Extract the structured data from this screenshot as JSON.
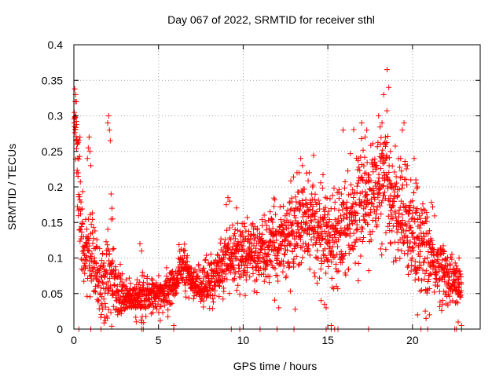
{
  "chart_data": {
    "type": "scatter",
    "title": "Day 067 of 2022, SRMTID for receiver sthl",
    "xlabel": "GPS time / hours",
    "ylabel": "SRMTID / TECUs",
    "xlim": [
      0,
      24
    ],
    "ylim": [
      0,
      0.4
    ],
    "xticks": [
      0,
      5,
      10,
      15,
      20
    ],
    "xtick_labels": [
      "0",
      "5",
      "10",
      "15",
      "20"
    ],
    "yticks": [
      0,
      0.05,
      0.1,
      0.15,
      0.2,
      0.25,
      0.3,
      0.35,
      0.4
    ],
    "ytick_labels": [
      "0",
      "0.05",
      "0.1",
      "0.15",
      "0.2",
      "0.25",
      "0.3",
      "0.35",
      "0.4"
    ],
    "grid": true,
    "marker": "plus",
    "color": "#ff0000",
    "trend": [
      {
        "x": 0.0,
        "y": 0.31,
        "s": 0.02
      },
      {
        "x": 0.3,
        "y": 0.2,
        "s": 0.06
      },
      {
        "x": 0.6,
        "y": 0.1,
        "s": 0.04
      },
      {
        "x": 1.0,
        "y": 0.12,
        "s": 0.05
      },
      {
        "x": 1.5,
        "y": 0.06,
        "s": 0.025
      },
      {
        "x": 2.0,
        "y": 0.08,
        "s": 0.05
      },
      {
        "x": 2.5,
        "y": 0.06,
        "s": 0.025
      },
      {
        "x": 3.0,
        "y": 0.045,
        "s": 0.015
      },
      {
        "x": 4.0,
        "y": 0.045,
        "s": 0.018
      },
      {
        "x": 5.0,
        "y": 0.045,
        "s": 0.015
      },
      {
        "x": 6.0,
        "y": 0.065,
        "s": 0.02
      },
      {
        "x": 6.3,
        "y": 0.095,
        "s": 0.02
      },
      {
        "x": 7.0,
        "y": 0.06,
        "s": 0.02
      },
      {
        "x": 8.0,
        "y": 0.065,
        "s": 0.025
      },
      {
        "x": 9.0,
        "y": 0.1,
        "s": 0.03
      },
      {
        "x": 10.0,
        "y": 0.11,
        "s": 0.03
      },
      {
        "x": 11.0,
        "y": 0.105,
        "s": 0.03
      },
      {
        "x": 12.0,
        "y": 0.12,
        "s": 0.035
      },
      {
        "x": 13.0,
        "y": 0.14,
        "s": 0.04
      },
      {
        "x": 14.0,
        "y": 0.15,
        "s": 0.04
      },
      {
        "x": 15.0,
        "y": 0.13,
        "s": 0.04
      },
      {
        "x": 16.0,
        "y": 0.15,
        "s": 0.045
      },
      {
        "x": 17.0,
        "y": 0.18,
        "s": 0.045
      },
      {
        "x": 18.0,
        "y": 0.2,
        "s": 0.05
      },
      {
        "x": 18.5,
        "y": 0.2,
        "s": 0.05
      },
      {
        "x": 19.0,
        "y": 0.17,
        "s": 0.05
      },
      {
        "x": 20.0,
        "y": 0.14,
        "s": 0.05
      },
      {
        "x": 21.0,
        "y": 0.1,
        "s": 0.04
      },
      {
        "x": 22.0,
        "y": 0.075,
        "s": 0.025
      },
      {
        "x": 22.8,
        "y": 0.06,
        "s": 0.02
      }
    ],
    "highlights": [
      {
        "x": 0.05,
        "y": 0.338
      },
      {
        "x": 0.1,
        "y": 0.33
      },
      {
        "x": 0.08,
        "y": 0.32
      },
      {
        "x": 0.15,
        "y": 0.32
      },
      {
        "x": 0.02,
        "y": 0.29
      },
      {
        "x": 0.12,
        "y": 0.3
      },
      {
        "x": 0.2,
        "y": 0.26
      },
      {
        "x": 0.25,
        "y": 0.22
      },
      {
        "x": 0.35,
        "y": 0.14
      },
      {
        "x": 0.45,
        "y": 0.13
      },
      {
        "x": 0.9,
        "y": 0.27
      },
      {
        "x": 0.85,
        "y": 0.255
      },
      {
        "x": 0.95,
        "y": 0.25
      },
      {
        "x": 0.8,
        "y": 0.24
      },
      {
        "x": 1.0,
        "y": 0.23
      },
      {
        "x": 2.05,
        "y": 0.3
      },
      {
        "x": 2.0,
        "y": 0.29
      },
      {
        "x": 2.1,
        "y": 0.28
      },
      {
        "x": 2.15,
        "y": 0.265
      },
      {
        "x": 2.2,
        "y": 0.19
      },
      {
        "x": 2.25,
        "y": 0.17
      },
      {
        "x": 2.3,
        "y": 0.155
      },
      {
        "x": 3.9,
        "y": 0.12
      },
      {
        "x": 4.0,
        "y": 0.11
      },
      {
        "x": 4.05,
        "y": 0.08
      },
      {
        "x": 9.0,
        "y": 0.175
      },
      {
        "x": 9.1,
        "y": 0.185
      },
      {
        "x": 9.2,
        "y": 0.18
      },
      {
        "x": 13.3,
        "y": 0.22
      },
      {
        "x": 13.4,
        "y": 0.24
      },
      {
        "x": 13.5,
        "y": 0.23
      },
      {
        "x": 13.9,
        "y": 0.22
      },
      {
        "x": 14.1,
        "y": 0.2
      },
      {
        "x": 15.9,
        "y": 0.28
      },
      {
        "x": 15.8,
        "y": 0.19
      },
      {
        "x": 16.8,
        "y": 0.24
      },
      {
        "x": 17.0,
        "y": 0.29
      },
      {
        "x": 17.2,
        "y": 0.27
      },
      {
        "x": 17.3,
        "y": 0.28
      },
      {
        "x": 18.0,
        "y": 0.3
      },
      {
        "x": 18.2,
        "y": 0.29
      },
      {
        "x": 18.3,
        "y": 0.33
      },
      {
        "x": 18.5,
        "y": 0.365
      },
      {
        "x": 18.6,
        "y": 0.34
      },
      {
        "x": 18.4,
        "y": 0.27
      },
      {
        "x": 18.7,
        "y": 0.25
      },
      {
        "x": 18.1,
        "y": 0.26
      },
      {
        "x": 18.25,
        "y": 0.245
      },
      {
        "x": 19.5,
        "y": 0.29
      },
      {
        "x": 19.4,
        "y": 0.28
      },
      {
        "x": 19.3,
        "y": 0.24
      },
      {
        "x": 19.7,
        "y": 0.23
      },
      {
        "x": 19.9,
        "y": 0.21
      },
      {
        "x": 20.1,
        "y": 0.24
      },
      {
        "x": 20.2,
        "y": 0.21
      },
      {
        "x": 20.3,
        "y": 0.2
      },
      {
        "x": 14.6,
        "y": 0.04
      },
      {
        "x": 14.8,
        "y": 0.035
      },
      {
        "x": 14.9,
        "y": 0.03
      },
      {
        "x": 15.2,
        "y": 0.005
      },
      {
        "x": 5.9,
        "y": 0.005
      },
      {
        "x": 5.1,
        "y": 0.012
      },
      {
        "x": 20.3,
        "y": 0.02
      },
      {
        "x": 20.8,
        "y": 0.015
      },
      {
        "x": 22.7,
        "y": 0.01
      },
      {
        "x": 22.9,
        "y": 0.005
      },
      {
        "x": 21.0,
        "y": 0.02
      },
      {
        "x": 12.1,
        "y": 0.03
      }
    ],
    "zero_points": [
      0.3,
      1.0,
      1.6,
      4.0,
      4.1,
      5.9,
      9.3,
      9.8,
      11.0,
      12.0,
      13.0,
      14.9,
      15.2,
      15.4,
      15.6,
      17.4,
      20.5,
      20.9,
      22.5,
      22.6,
      22.9
    ]
  }
}
